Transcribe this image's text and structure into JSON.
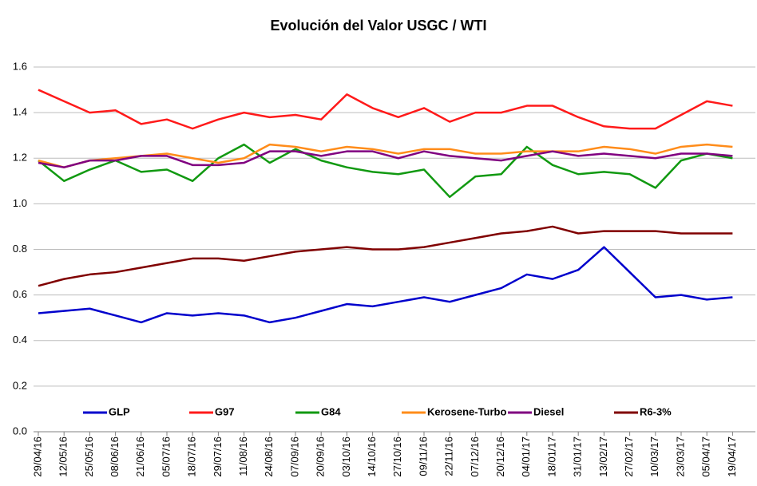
{
  "chart_data": {
    "type": "line",
    "title": "Evolución del Valor USGC / WTI",
    "categories": [
      "29/04/16",
      "12/05/16",
      "25/05/16",
      "08/06/16",
      "21/06/16",
      "05/07/16",
      "18/07/16",
      "29/07/16",
      "11/08/16",
      "24/08/16",
      "07/09/16",
      "20/09/16",
      "03/10/16",
      "14/10/16",
      "27/10/16",
      "09/11/16",
      "22/11/16",
      "07/12/16",
      "20/12/16",
      "04/01/17",
      "18/01/17",
      "31/01/17",
      "13/02/17",
      "27/02/17",
      "10/03/17",
      "23/03/17",
      "05/04/17",
      "19/04/17"
    ],
    "series": [
      {
        "name": "GLP",
        "color": "#0000cc",
        "values": [
          0.52,
          0.53,
          0.54,
          0.51,
          0.48,
          0.52,
          0.51,
          0.52,
          0.51,
          0.48,
          0.5,
          0.53,
          0.56,
          0.55,
          0.57,
          0.59,
          0.57,
          0.6,
          0.63,
          0.69,
          0.67,
          0.71,
          0.81,
          0.7,
          0.59,
          0.6,
          0.58,
          0.59
        ]
      },
      {
        "name": "G97",
        "color": "#ff1a1a",
        "values": [
          1.5,
          1.45,
          1.4,
          1.41,
          1.35,
          1.37,
          1.33,
          1.37,
          1.4,
          1.38,
          1.39,
          1.37,
          1.48,
          1.42,
          1.38,
          1.42,
          1.36,
          1.4,
          1.4,
          1.43,
          1.43,
          1.38,
          1.34,
          1.33,
          1.33,
          1.39,
          1.45,
          1.43
        ]
      },
      {
        "name": "G84",
        "color": "#119911",
        "values": [
          1.19,
          1.1,
          1.15,
          1.19,
          1.14,
          1.15,
          1.1,
          1.2,
          1.26,
          1.18,
          1.24,
          1.19,
          1.16,
          1.14,
          1.13,
          1.15,
          1.03,
          1.12,
          1.13,
          1.25,
          1.17,
          1.13,
          1.14,
          1.13,
          1.07,
          1.19,
          1.22,
          1.2
        ]
      },
      {
        "name": "Kerosene-Turbo",
        "color": "#ff8c1a",
        "values": [
          1.19,
          1.16,
          1.19,
          1.2,
          1.21,
          1.22,
          1.2,
          1.18,
          1.2,
          1.26,
          1.25,
          1.23,
          1.25,
          1.24,
          1.22,
          1.24,
          1.24,
          1.22,
          1.22,
          1.23,
          1.23,
          1.23,
          1.25,
          1.24,
          1.22,
          1.25,
          1.26,
          1.25
        ]
      },
      {
        "name": "Diesel",
        "color": "#800080",
        "values": [
          1.18,
          1.16,
          1.19,
          1.19,
          1.21,
          1.21,
          1.17,
          1.17,
          1.18,
          1.23,
          1.23,
          1.21,
          1.23,
          1.23,
          1.2,
          1.23,
          1.21,
          1.2,
          1.19,
          1.21,
          1.23,
          1.21,
          1.22,
          1.21,
          1.2,
          1.22,
          1.22,
          1.21
        ]
      },
      {
        "name": "R6-3%",
        "color": "#800000",
        "values": [
          0.64,
          0.67,
          0.69,
          0.7,
          0.72,
          0.74,
          0.76,
          0.76,
          0.75,
          0.77,
          0.79,
          0.8,
          0.81,
          0.8,
          0.8,
          0.81,
          0.83,
          0.85,
          0.87,
          0.88,
          0.9,
          0.87,
          0.88,
          0.88,
          0.88,
          0.87,
          0.87,
          0.87
        ]
      }
    ],
    "ylim": [
      0,
      1.6
    ],
    "yticks": [
      {
        "value": 0,
        "label": "0.0"
      },
      0.2,
      0.4,
      0.6,
      0.8,
      {
        "value": 1,
        "label": "1.0"
      },
      1.2,
      1.4,
      1.6
    ],
    "grid": true,
    "legend": "bottom"
  }
}
